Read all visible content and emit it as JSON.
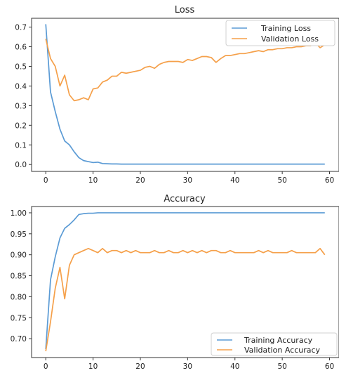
{
  "chart_data": [
    {
      "type": "line",
      "title": "Loss",
      "xlabel": "",
      "ylabel": "",
      "xlim": [
        -3,
        62
      ],
      "ylim": [
        -0.035,
        0.745
      ],
      "xticks": [
        0,
        10,
        20,
        30,
        40,
        50,
        60
      ],
      "yticks": [
        0.0,
        0.1,
        0.2,
        0.3,
        0.4,
        0.5,
        0.6,
        0.7
      ],
      "grid": false,
      "legend": "top-right",
      "series": [
        {
          "name": "Training Loss",
          "color": "#5b9bd5",
          "x": [
            0,
            1,
            2,
            3,
            4,
            5,
            6,
            7,
            8,
            9,
            10,
            11,
            12,
            13,
            14,
            15,
            16,
            17,
            18,
            19,
            20,
            21,
            22,
            23,
            24,
            25,
            26,
            27,
            28,
            29,
            30,
            31,
            32,
            33,
            34,
            35,
            36,
            37,
            38,
            39,
            40,
            41,
            42,
            43,
            44,
            45,
            46,
            47,
            48,
            49,
            50,
            51,
            52,
            53,
            54,
            55,
            56,
            57,
            58,
            59
          ],
          "y": [
            0.715,
            0.37,
            0.27,
            0.18,
            0.12,
            0.1,
            0.065,
            0.035,
            0.02,
            0.015,
            0.01,
            0.012,
            0.005,
            0.004,
            0.003,
            0.003,
            0.002,
            0.002,
            0.002,
            0.002,
            0.002,
            0.002,
            0.002,
            0.002,
            0.002,
            0.002,
            0.002,
            0.002,
            0.002,
            0.002,
            0.002,
            0.002,
            0.002,
            0.002,
            0.002,
            0.002,
            0.002,
            0.002,
            0.002,
            0.002,
            0.002,
            0.002,
            0.002,
            0.002,
            0.002,
            0.002,
            0.002,
            0.002,
            0.002,
            0.002,
            0.002,
            0.002,
            0.002,
            0.002,
            0.002,
            0.002,
            0.002,
            0.002,
            0.002,
            0.002
          ]
        },
        {
          "name": "Validation Loss",
          "color": "#f5a04a",
          "x": [
            0,
            1,
            2,
            3,
            4,
            5,
            6,
            7,
            8,
            9,
            10,
            11,
            12,
            13,
            14,
            15,
            16,
            17,
            18,
            19,
            20,
            21,
            22,
            23,
            24,
            25,
            26,
            27,
            28,
            29,
            30,
            31,
            32,
            33,
            34,
            35,
            36,
            37,
            38,
            39,
            40,
            41,
            42,
            43,
            44,
            45,
            46,
            47,
            48,
            49,
            50,
            51,
            52,
            53,
            54,
            55,
            56,
            57,
            58,
            59
          ],
          "y": [
            0.64,
            0.54,
            0.5,
            0.4,
            0.455,
            0.355,
            0.325,
            0.33,
            0.34,
            0.33,
            0.385,
            0.39,
            0.42,
            0.43,
            0.45,
            0.45,
            0.47,
            0.465,
            0.47,
            0.475,
            0.48,
            0.495,
            0.5,
            0.49,
            0.51,
            0.52,
            0.525,
            0.525,
            0.525,
            0.52,
            0.535,
            0.53,
            0.54,
            0.55,
            0.55,
            0.545,
            0.52,
            0.54,
            0.555,
            0.555,
            0.56,
            0.565,
            0.565,
            0.57,
            0.575,
            0.58,
            0.575,
            0.585,
            0.585,
            0.59,
            0.59,
            0.595,
            0.595,
            0.6,
            0.6,
            0.605,
            0.605,
            0.62,
            0.595,
            0.61
          ]
        }
      ]
    },
    {
      "type": "line",
      "title": "Accuracy",
      "xlabel": "",
      "ylabel": "",
      "xlim": [
        -3,
        62
      ],
      "ylim": [
        0.655,
        1.015
      ],
      "xticks": [
        0,
        10,
        20,
        30,
        40,
        50,
        60
      ],
      "yticks": [
        0.7,
        0.75,
        0.8,
        0.85,
        0.9,
        0.95,
        1.0
      ],
      "grid": false,
      "legend": "bottom-right",
      "series": [
        {
          "name": "Training Accuracy",
          "color": "#5b9bd5",
          "x": [
            0,
            1,
            2,
            3,
            4,
            5,
            6,
            7,
            8,
            9,
            10,
            11,
            12,
            13,
            14,
            15,
            16,
            17,
            18,
            19,
            20,
            21,
            22,
            23,
            24,
            25,
            26,
            27,
            28,
            29,
            30,
            31,
            32,
            33,
            34,
            35,
            36,
            37,
            38,
            39,
            40,
            41,
            42,
            43,
            44,
            45,
            46,
            47,
            48,
            49,
            50,
            51,
            52,
            53,
            54,
            55,
            56,
            57,
            58,
            59
          ],
          "y": [
            0.675,
            0.84,
            0.895,
            0.94,
            0.963,
            0.972,
            0.983,
            0.996,
            0.998,
            0.999,
            0.999,
            1.0,
            1.0,
            1.0,
            1.0,
            1.0,
            1.0,
            1.0,
            1.0,
            1.0,
            1.0,
            1.0,
            1.0,
            1.0,
            1.0,
            1.0,
            1.0,
            1.0,
            1.0,
            1.0,
            1.0,
            1.0,
            1.0,
            1.0,
            1.0,
            1.0,
            1.0,
            1.0,
            1.0,
            1.0,
            1.0,
            1.0,
            1.0,
            1.0,
            1.0,
            1.0,
            1.0,
            1.0,
            1.0,
            1.0,
            1.0,
            1.0,
            1.0,
            1.0,
            1.0,
            1.0,
            1.0,
            1.0,
            1.0,
            1.0
          ]
        },
        {
          "name": "Validation Accuracy",
          "color": "#f5a04a",
          "x": [
            0,
            1,
            2,
            3,
            4,
            5,
            6,
            7,
            8,
            9,
            10,
            11,
            12,
            13,
            14,
            15,
            16,
            17,
            18,
            19,
            20,
            21,
            22,
            23,
            24,
            25,
            26,
            27,
            28,
            29,
            30,
            31,
            32,
            33,
            34,
            35,
            36,
            37,
            38,
            39,
            40,
            41,
            42,
            43,
            44,
            45,
            46,
            47,
            48,
            49,
            50,
            51,
            52,
            53,
            54,
            55,
            56,
            57,
            58,
            59
          ],
          "y": [
            0.67,
            0.74,
            0.82,
            0.87,
            0.795,
            0.875,
            0.9,
            0.905,
            0.91,
            0.915,
            0.91,
            0.905,
            0.915,
            0.905,
            0.91,
            0.91,
            0.905,
            0.91,
            0.905,
            0.91,
            0.905,
            0.905,
            0.905,
            0.91,
            0.905,
            0.905,
            0.91,
            0.905,
            0.905,
            0.91,
            0.905,
            0.91,
            0.905,
            0.91,
            0.905,
            0.91,
            0.91,
            0.905,
            0.905,
            0.91,
            0.905,
            0.905,
            0.905,
            0.905,
            0.905,
            0.91,
            0.905,
            0.91,
            0.905,
            0.905,
            0.905,
            0.905,
            0.91,
            0.905,
            0.905,
            0.905,
            0.905,
            0.905,
            0.915,
            0.9
          ]
        }
      ]
    }
  ]
}
